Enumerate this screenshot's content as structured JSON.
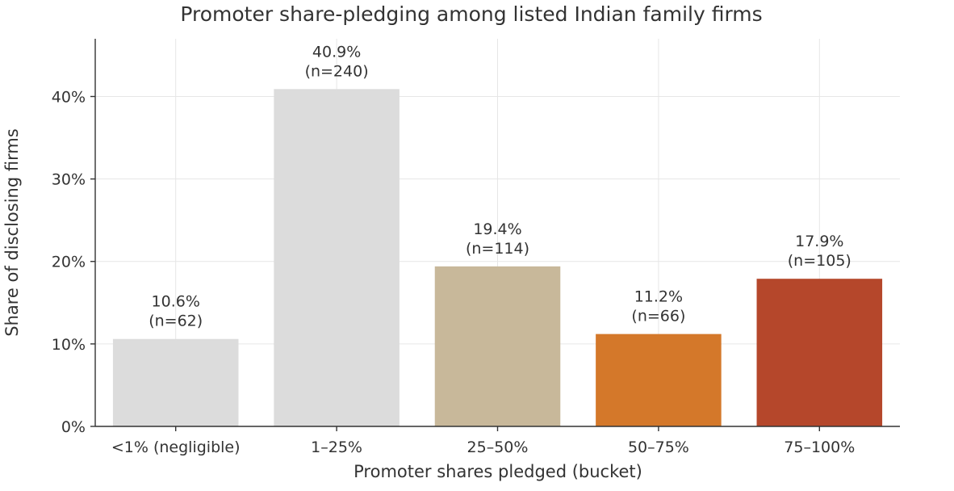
{
  "chart_data": {
    "type": "bar",
    "title": "Promoter share-pledging among listed Indian family firms",
    "xlabel": "Promoter shares pledged (bucket)",
    "ylabel": "Share of disclosing firms",
    "categories": [
      "<1% (negligible)",
      "1–25%",
      "25–50%",
      "50–75%",
      "75–100%"
    ],
    "values": [
      10.6,
      40.9,
      19.4,
      11.2,
      17.9
    ],
    "counts": [
      62,
      240,
      114,
      66,
      105
    ],
    "value_labels": [
      "10.6%",
      "40.9%",
      "19.4%",
      "11.2%",
      "17.9%"
    ],
    "count_labels": [
      "(n=62)",
      "(n=240)",
      "(n=114)",
      "(n=66)",
      "(n=105)"
    ],
    "colors": [
      "#dcdcdc",
      "#dcdcdc",
      "#c8b89a",
      "#d4782a",
      "#b5472b"
    ],
    "ylim": [
      0,
      47
    ],
    "yticks": [
      0,
      10,
      20,
      30,
      40
    ],
    "ytick_labels": [
      "0%",
      "10%",
      "20%",
      "30%",
      "40%"
    ],
    "grid": true,
    "legend": "none"
  }
}
